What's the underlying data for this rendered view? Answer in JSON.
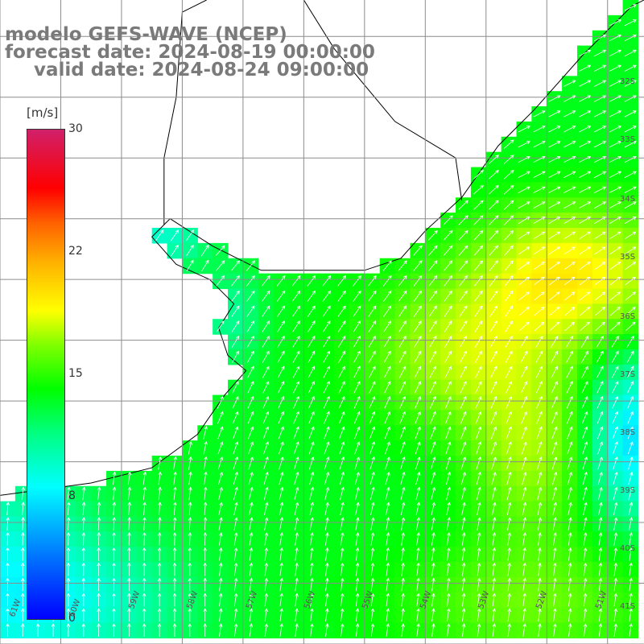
{
  "title": {
    "line1": "modelo GEFS-WAVE (NCEP)",
    "line2": "forecast date: 2024-08-19 00:00:00",
    "line3": "valid date: 2024-08-24 09:00:00"
  },
  "colorbar": {
    "unit": "[m/s]",
    "ticks": [
      "30",
      "22",
      "15",
      "8",
      "0"
    ],
    "range": [
      0,
      30
    ],
    "colors": [
      "#0000ff",
      "#0080ff",
      "#00ffff",
      "#00ff80",
      "#00ff00",
      "#80ff00",
      "#ffff00",
      "#ffb000",
      "#ff6000",
      "#ff0000",
      "#d0206a"
    ]
  },
  "axes": {
    "lat_labels": [
      "32S",
      "33S",
      "34S",
      "35S",
      "36S",
      "37S",
      "38S",
      "39S",
      "40S",
      "41S"
    ],
    "lon_labels": [
      "61W",
      "60W",
      "59W",
      "58W",
      "57W",
      "56W",
      "55W",
      "54W",
      "53W",
      "52W",
      "51W"
    ]
  },
  "map": {
    "extent": {
      "lon": [
        -61,
        -50.4
      ],
      "lat": [
        -41,
        -30.4
      ]
    },
    "cell_deg": 0.25,
    "land_color": "#ffffff",
    "grid_color": "#8c8c8c",
    "coast_color": "#000000",
    "arrow_color": "#ffffff"
  }
}
